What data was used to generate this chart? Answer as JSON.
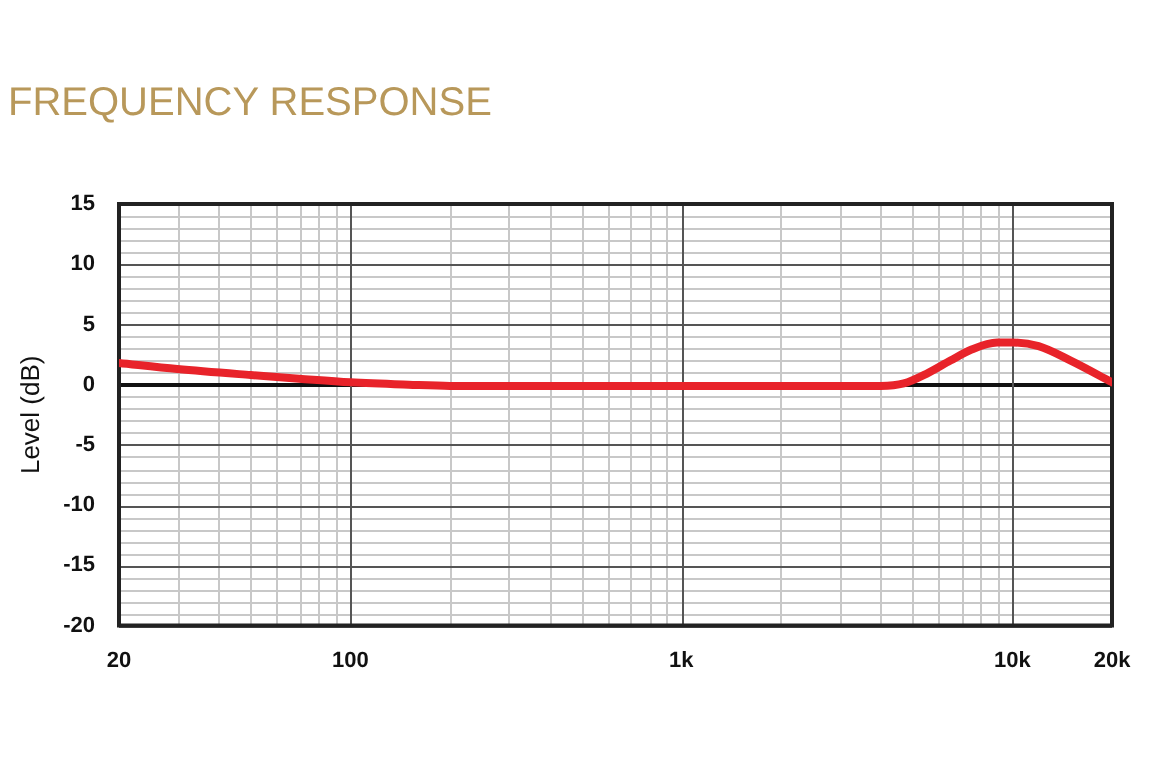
{
  "chart_data": {
    "type": "line",
    "title": "FREQUENCY RESPONSE",
    "ylabel": "Level (dB)",
    "log": "x",
    "x": [
      20,
      30,
      50,
      70,
      100,
      150,
      200,
      300,
      500,
      1000,
      2000,
      4000,
      4700,
      5500,
      6500,
      7500,
      9000,
      10000,
      12000,
      15000,
      20000
    ],
    "series": [
      {
        "color": "#e8232a",
        "values": [
          1.8,
          1.3,
          0.8,
          0.5,
          0.2,
          0,
          -0.1,
          -0.1,
          -0.1,
          -0.1,
          -0.1,
          -0.1,
          0.1,
          0.9,
          2,
          2.9,
          3.5,
          3.5,
          3.2,
          2,
          0.2
        ]
      }
    ],
    "xlim": [
      20,
      20000
    ],
    "xticks": [
      20,
      100,
      {
        "value": 1000,
        "label": "1k"
      },
      {
        "value": 10000,
        "label": "10k"
      },
      {
        "value": 20000,
        "label": "20k"
      }
    ],
    "ylim": [
      -20,
      15
    ],
    "yticks": [
      -20,
      -15,
      -10,
      -5,
      0,
      5,
      10,
      15
    ],
    "grid": true,
    "marker": "none",
    "line_style": "solid",
    "legend": false
  }
}
